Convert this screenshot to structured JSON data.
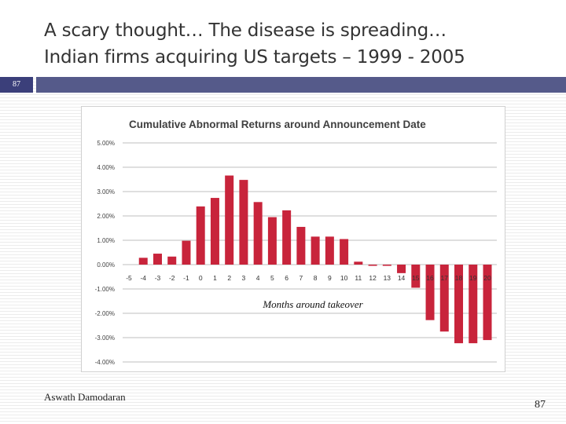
{
  "slide": {
    "title_line1": "A scary thought… The disease is spreading…",
    "title_line2": "Indian firms acquiring US targets – 1999 - 2005",
    "slide_number_badge": "87",
    "author": "Aswath Damodaran",
    "page_number": "87"
  },
  "colors": {
    "bar": "#c8243b",
    "header_bar": "#555a8a",
    "badge": "#3b3f7a"
  },
  "chart_data": {
    "type": "bar",
    "title": "Cumulative Abnormal Returns around Announcement Date",
    "xlabel": "Months around takeover",
    "ylabel": "",
    "ylim": [
      -0.04,
      0.05
    ],
    "yticks": [
      "5.00%",
      "4.00%",
      "3.00%",
      "2.00%",
      "1.00%",
      "0.00%",
      "-1.00%",
      "-2.00%",
      "-3.00%",
      "-4.00%"
    ],
    "grid": true,
    "categories": [
      "-5",
      "-4",
      "-3",
      "-2",
      "-1",
      "0",
      "1",
      "2",
      "3",
      "4",
      "5",
      "6",
      "7",
      "8",
      "9",
      "10",
      "11",
      "12",
      "13",
      "14",
      "15",
      "16",
      "17",
      "18",
      "19",
      "20"
    ],
    "values": [
      0.0,
      0.0028,
      0.0045,
      0.0033,
      0.0098,
      0.0239,
      0.0274,
      0.0366,
      0.0348,
      0.0257,
      0.0195,
      0.0223,
      0.0155,
      0.0115,
      0.0115,
      0.0105,
      0.0012,
      -0.0005,
      -0.0005,
      -0.0035,
      -0.0095,
      -0.0228,
      -0.0275,
      -0.0323,
      -0.0323,
      -0.031
    ]
  }
}
